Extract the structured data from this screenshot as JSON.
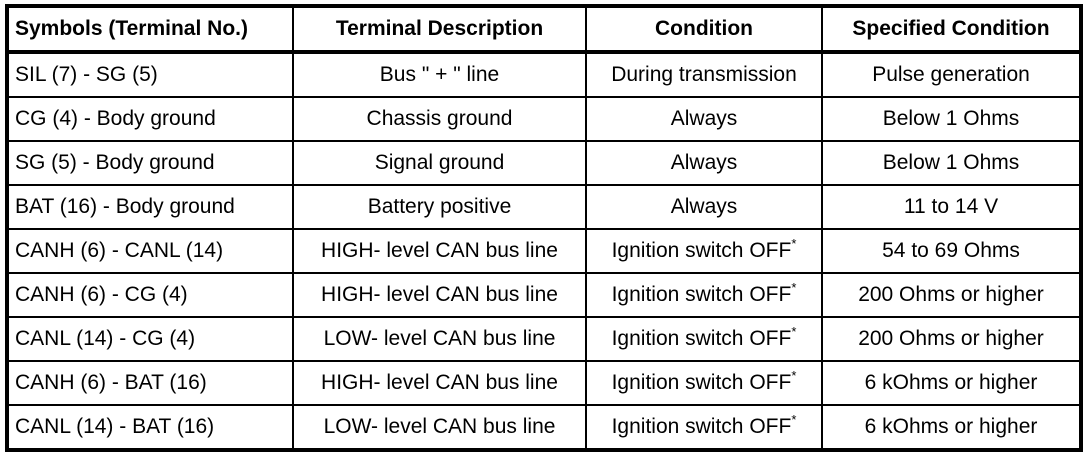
{
  "table": {
    "colors": {
      "border": "#000000",
      "text": "#000000",
      "background": "#ffffff"
    },
    "headers": {
      "symbols": "Symbols (Terminal No.)",
      "description": "Terminal Description",
      "condition": "Condition",
      "specified": "Specified Condition"
    },
    "rows": [
      {
        "symbols": "SIL (7) - SG (5)",
        "description": "Bus \" + \" line",
        "condition": "During transmission",
        "condition_note": "",
        "specified": "Pulse generation"
      },
      {
        "symbols": "CG (4) - Body ground",
        "description": "Chassis ground",
        "condition": "Always",
        "condition_note": "",
        "specified": "Below 1 Ohms"
      },
      {
        "symbols": "SG (5) - Body ground",
        "description": "Signal ground",
        "condition": "Always",
        "condition_note": "",
        "specified": "Below 1 Ohms"
      },
      {
        "symbols": "BAT (16) - Body ground",
        "description": "Battery positive",
        "condition": "Always",
        "condition_note": "",
        "specified": "11 to 14 V"
      },
      {
        "symbols": "CANH (6) - CANL (14)",
        "description": "HIGH- level CAN bus line",
        "condition": "Ignition switch OFF",
        "condition_note": "*",
        "specified": "54 to 69 Ohms"
      },
      {
        "symbols": "CANH (6) - CG (4)",
        "description": "HIGH- level CAN bus line",
        "condition": "Ignition switch OFF",
        "condition_note": "*",
        "specified": "200 Ohms or higher"
      },
      {
        "symbols": "CANL (14) - CG (4)",
        "description": "LOW- level CAN bus line",
        "condition": "Ignition switch OFF",
        "condition_note": "*",
        "specified": "200 Ohms or higher"
      },
      {
        "symbols": "CANH (6) - BAT (16)",
        "description": "HIGH- level CAN bus line",
        "condition": "Ignition switch OFF",
        "condition_note": "*",
        "specified": "6 kOhms or higher"
      },
      {
        "symbols": "CANL (14) - BAT (16)",
        "description": "LOW- level CAN bus line",
        "condition": "Ignition switch OFF",
        "condition_note": "*",
        "specified": "6 kOhms or higher"
      }
    ]
  }
}
